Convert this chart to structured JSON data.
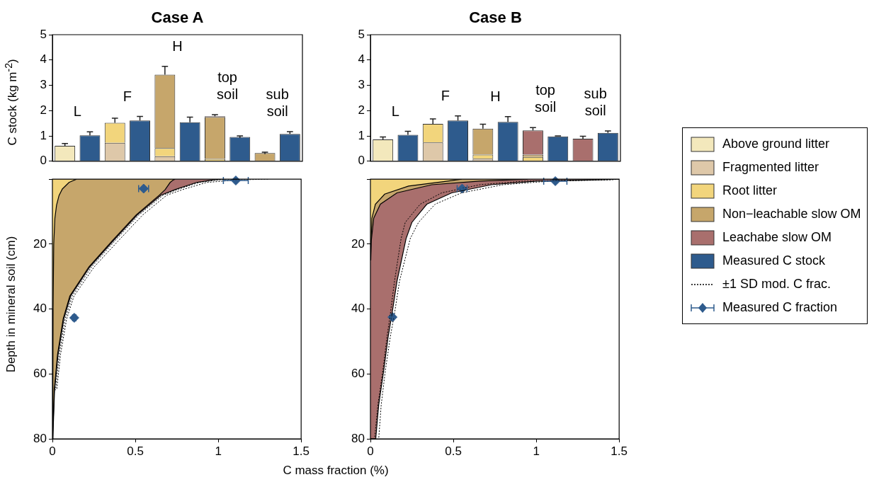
{
  "chart_data": [
    {
      "type": "bar",
      "title": "Case A",
      "ylabel": "C stock (kg m$^{-2}$)",
      "categories": [
        "L",
        null,
        "F",
        null,
        "H",
        null,
        "top soil",
        null,
        "sub soil",
        null
      ],
      "stacked": true,
      "ylim": [
        0,
        5
      ],
      "yticks": [
        0,
        1,
        2,
        3,
        4,
        5
      ],
      "tick_labels": "y",
      "series": [
        {
          "color": "#f3e8bc",
          "values": [
            0.61,
            null,
            null,
            null,
            null,
            null,
            null,
            null,
            null,
            null
          ],
          "errors": [
            [
              0.61,
              0.7
            ],
            null,
            null,
            null,
            null,
            null,
            null,
            null,
            null,
            null
          ]
        },
        {
          "color": "#dec8a9",
          "values": [
            null,
            null,
            0.73,
            null,
            0.2,
            null,
            null,
            null,
            null,
            null
          ]
        },
        {
          "color": "#f2d57c",
          "values": [
            null,
            null,
            0.79,
            null,
            0.32,
            null,
            0.09,
            null,
            null,
            null
          ],
          "errors": [
            null,
            null,
            [
              1.52,
              1.7
            ],
            null,
            null,
            null,
            null,
            null,
            null,
            null
          ]
        },
        {
          "color": "#c6a66b",
          "values": [
            null,
            null,
            null,
            null,
            2.9,
            null,
            1.66,
            null,
            0.32,
            null
          ],
          "errors": [
            null,
            null,
            null,
            null,
            [
              3.42,
              3.75
            ],
            null,
            null,
            null,
            0.04,
            null
          ]
        },
        {
          "color": "#a96f6d",
          "values": [
            null,
            null,
            null,
            null,
            null,
            null,
            0.03,
            null,
            null,
            null
          ],
          "errors": [
            null,
            null,
            null,
            null,
            null,
            null,
            [
              1.78,
              1.84
            ],
            null,
            null,
            null
          ]
        },
        {
          "color": "#2e5b8d",
          "values": [
            null,
            1.02,
            null,
            1.61,
            null,
            1.54,
            null,
            0.96,
            null,
            1.08
          ],
          "errors": [
            null,
            [
              1.02,
              1.16
            ],
            null,
            [
              1.61,
              1.77
            ],
            null,
            [
              1.54,
              1.74
            ],
            null,
            0.04,
            null,
            [
              1.08,
              1.17
            ]
          ]
        }
      ]
    },
    {
      "type": "area",
      "xlabel": "C mass fraction (%)",
      "ylabel": "Depth in mineral soil (cm)",
      "xlim": [
        0,
        1.5
      ],
      "xticks": [
        0,
        0.5,
        1,
        1.5
      ],
      "ylim": [
        80,
        0
      ],
      "yticks": [
        {
          "value": 0,
          "label": null
        },
        20,
        40,
        60,
        80
      ],
      "series": [
        {
          "type": "area",
          "color": "#a96f6d",
          "x": [
            1.04,
            0.97,
            0.87,
            0.74,
            0.655,
            0.512,
            0.367,
            0.226,
            0.11,
            0.069,
            0.034,
            0.013,
            0.004,
            0.003
          ],
          "values": [
            0,
            0.2,
            1,
            3.2,
            4.9,
            11,
            19,
            27,
            36,
            43,
            54,
            65,
            78,
            80
          ]
        },
        {
          "type": "area",
          "color": "#c6a66b",
          "x": [
            0.74,
            0.73,
            0.71,
            0.68,
            0.645,
            0.505,
            0.36,
            0.22,
            0.105,
            0.065,
            0.031,
            0.011,
            0.003,
            0.002
          ],
          "values": [
            0,
            0.2,
            1,
            3.2,
            4.9,
            11,
            19,
            27,
            36,
            43,
            54,
            65,
            78,
            80
          ]
        },
        {
          "type": "area",
          "color": "#f2d57c",
          "x": [
            0.145,
            0.1,
            0.06,
            0.04,
            0.025,
            0.015,
            0.008,
            0.004,
            0.002
          ],
          "values": [
            0,
            1,
            3,
            5,
            8,
            12,
            20,
            40,
            80
          ]
        },
        {
          "type": "line",
          "line_style": "dotted",
          "color": "#000000",
          "x": [
            1.1,
            1.0,
            0.885,
            0.752,
            0.668,
            0.522,
            0.377,
            0.236,
            0.119,
            0.077,
            0.041,
            0.019
          ],
          "values": [
            0,
            0.2,
            1,
            3.2,
            4.9,
            11,
            19,
            27,
            36,
            43,
            54,
            65
          ]
        },
        {
          "type": "line",
          "line_style": "dotted",
          "color": "#000000",
          "x": [
            1.3,
            1.12,
            0.93,
            0.785,
            0.69,
            0.545,
            0.397,
            0.252,
            0.13,
            0.086,
            0.049,
            0.026
          ],
          "values": [
            0,
            0.2,
            1,
            3.2,
            4.9,
            11,
            19,
            27,
            36,
            43,
            54,
            65
          ]
        },
        {
          "type": "scatter",
          "marker": "diamond",
          "color": "#2e5b8d",
          "x": [
            0.55,
            0.132,
            1.106
          ],
          "values": [
            2.9,
            42.7,
            0.4
          ],
          "xerrors": [
            0.03,
            0.01,
            0.075
          ]
        }
      ]
    },
    {
      "type": "bar",
      "title": "Case B",
      "categories": [
        "L",
        null,
        "F",
        null,
        "H",
        null,
        "top soil",
        null,
        "sub soil",
        null
      ],
      "stacked": true,
      "ylim": [
        0,
        5
      ],
      "yticks": [
        0,
        1,
        2,
        3,
        4,
        5
      ],
      "tick_labels": "y",
      "legend": "right",
      "series": [
        {
          "name": "Above ground litter",
          "color": "#f3e8bc",
          "values": [
            0.86,
            null,
            null,
            null,
            null,
            null,
            null,
            null,
            null,
            null
          ],
          "errors": [
            [
              0.86,
              0.96
            ],
            null,
            null,
            null,
            null,
            null,
            null,
            null,
            null,
            null
          ]
        },
        {
          "name": "Fragmented litter",
          "color": "#dec8a9",
          "values": [
            null,
            null,
            0.74,
            null,
            0.1,
            null,
            null,
            null,
            null,
            null
          ]
        },
        {
          "name": "Root litter",
          "color": "#f2d57c",
          "values": [
            null,
            null,
            0.74,
            null,
            0.16,
            null,
            0.17,
            null,
            null,
            null
          ],
          "errors": [
            null,
            null,
            [
              1.48,
              1.67
            ],
            null,
            null,
            null,
            null,
            null,
            null,
            null
          ]
        },
        {
          "name": "Non−leachable slow OM",
          "color": "#c6a66b",
          "values": [
            null,
            null,
            null,
            null,
            1.03,
            null,
            0.09,
            null,
            null,
            null
          ],
          "errors": [
            null,
            null,
            null,
            null,
            [
              1.29,
              1.46
            ],
            null,
            null,
            null,
            null,
            null
          ]
        },
        {
          "name": "Leachabe slow OM",
          "color": "#a96f6d",
          "values": [
            null,
            null,
            null,
            null,
            null,
            null,
            0.96,
            null,
            0.89,
            null
          ],
          "errors": [
            null,
            null,
            null,
            null,
            null,
            null,
            [
              1.22,
              1.33
            ],
            null,
            [
              0.89,
              0.99
            ],
            null
          ]
        },
        {
          "name": "Measured C stock",
          "color": "#2e5b8d",
          "values": [
            null,
            1.04,
            null,
            1.61,
            null,
            1.55,
            null,
            0.98,
            null,
            1.12
          ],
          "errors": [
            null,
            [
              1.04,
              1.18
            ],
            null,
            [
              1.61,
              1.79
            ],
            null,
            [
              1.55,
              1.76
            ],
            null,
            [
              0.98,
              1.0
            ],
            null,
            [
              1.12,
              1.2
            ]
          ]
        }
      ]
    },
    {
      "type": "area",
      "xlim": [
        0,
        1.5
      ],
      "xticks": [
        0,
        0.5,
        1,
        1.5
      ],
      "ylim": [
        80,
        0
      ],
      "yticks": [
        {
          "value": 0,
          "label": null
        },
        20,
        40,
        60,
        80
      ],
      "legend": "right",
      "series": [
        {
          "type": "area",
          "color": "#a96f6d",
          "x": [
            1.5,
            1.37,
            1.0,
            0.73,
            0.49,
            0.34,
            0.25,
            0.215,
            0.16,
            0.13,
            0.107,
            0.08,
            0.05,
            0.032,
            0
          ],
          "values": [
            0,
            0.2,
            0.6,
            1.7,
            4.2,
            7.7,
            13.3,
            18.3,
            31.5,
            41.5,
            48.5,
            59,
            69.5,
            80,
            80
          ]
        },
        {
          "type": "area",
          "color": "#c6a66b",
          "x": [
            0.95,
            0.66,
            0.37,
            0.16,
            0.06,
            0.02,
            0.005,
            0.002
          ],
          "values": [
            0,
            0.6,
            1.7,
            4.2,
            7.7,
            12,
            19,
            25
          ]
        },
        {
          "type": "area",
          "color": "#f2d57c",
          "x": [
            0.55,
            0.45,
            0.23,
            0.086,
            0.03,
            0.009,
            0.003,
            0.001
          ],
          "values": [
            0,
            0.7,
            2.1,
            4.6,
            7.7,
            12,
            20,
            25
          ]
        },
        {
          "name": "±1 SD mod. C frac.",
          "type": "line",
          "line_style": "dotted",
          "color": "#000000",
          "x": [
            1.5,
            1.3,
            0.92,
            0.66,
            0.43,
            0.3,
            0.21,
            0.185,
            0.145,
            0.12,
            0.1,
            0.075,
            0.045,
            0.025
          ],
          "values": [
            0,
            0.2,
            0.6,
            1.7,
            4.2,
            7.7,
            13.3,
            18.3,
            31.5,
            41.5,
            48.5,
            59,
            69.5,
            80
          ]
        },
        {
          "type": "line",
          "line_style": "dotted",
          "color": "#000000",
          "x": [
            1.5,
            1.45,
            1.08,
            0.8,
            0.55,
            0.39,
            0.29,
            0.24,
            0.175,
            0.145,
            0.12,
            0.09,
            0.065,
            0.05
          ],
          "values": [
            0,
            0.2,
            0.6,
            1.7,
            4.2,
            7.7,
            13.3,
            18.3,
            31.5,
            41.5,
            48.5,
            59,
            69.5,
            80
          ]
        },
        {
          "name": "Measured C fraction",
          "type": "scatter",
          "marker": "diamond",
          "color": "#2e5b8d",
          "x": [
            0.553,
            0.133,
            1.115
          ],
          "values": [
            2.9,
            42.5,
            0.6
          ],
          "xerrors": [
            0.03,
            0.01,
            0.07
          ]
        }
      ]
    }
  ]
}
